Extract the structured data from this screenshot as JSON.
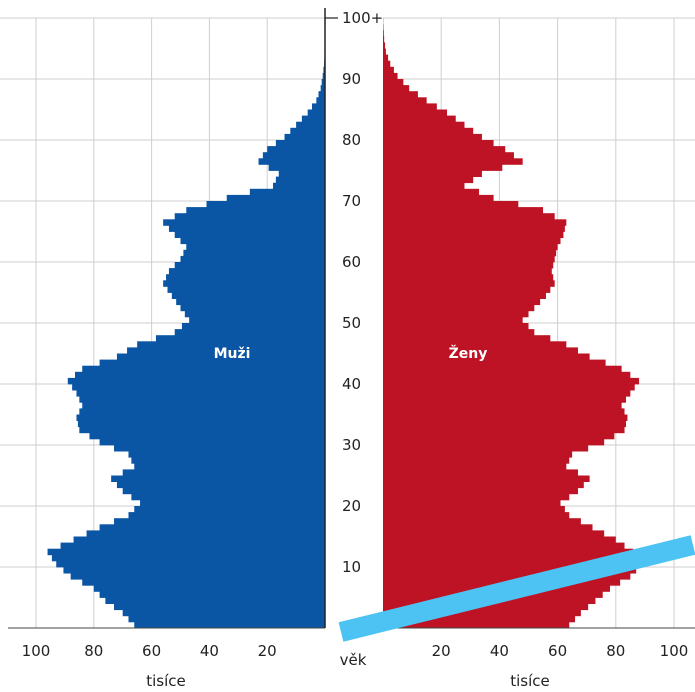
{
  "chart_data": {
    "type": "bar",
    "orientation": "horizontal-pyramid",
    "title": "",
    "grid": true,
    "colors": {
      "male": "#0b56a4",
      "female": "#bd1325",
      "grid": "#cfcfcf",
      "overlay_line": "#4cc3f3"
    },
    "age_axis": {
      "title": "věk",
      "ticks": [
        "10",
        "20",
        "30",
        "40",
        "50",
        "60",
        "70",
        "80",
        "90",
        "100+"
      ]
    },
    "value_axis": {
      "unit": "tisíce",
      "range": [
        0,
        100
      ],
      "ticks": [
        "100",
        "80",
        "60",
        "40",
        "20"
      ],
      "ticks_right": [
        "20",
        "40",
        "60",
        "80",
        "100"
      ]
    },
    "series": [
      {
        "name": "Muži",
        "side": "left",
        "ages": [
          0,
          2,
          4,
          6,
          8,
          10,
          12,
          14,
          16,
          18,
          20,
          22,
          24,
          26,
          28,
          30,
          32,
          34,
          36,
          38,
          40,
          42,
          44,
          46,
          48,
          50,
          52,
          54,
          56,
          58,
          60,
          62,
          64,
          66,
          68,
          70,
          72,
          74,
          76,
          78,
          80,
          82,
          84,
          86,
          88,
          90,
          92,
          94,
          96,
          98,
          100
        ],
        "values": [
          66,
          70,
          76,
          80,
          88,
          93,
          96,
          87,
          78,
          68,
          64,
          70,
          74,
          66,
          68,
          78,
          85,
          86,
          84,
          86,
          89,
          84,
          72,
          65,
          52,
          47,
          50,
          53,
          56,
          54,
          50,
          48,
          52,
          56,
          48,
          34,
          18,
          16,
          23,
          20,
          14,
          10,
          6,
          3,
          1.5,
          0.8,
          0.3,
          0.1,
          0.05,
          0.02,
          0
        ]
      },
      {
        "name": "Ženy",
        "side": "right",
        "ages": [
          0,
          2,
          4,
          6,
          8,
          10,
          12,
          14,
          16,
          18,
          20,
          22,
          24,
          26,
          28,
          30,
          32,
          34,
          36,
          38,
          40,
          42,
          44,
          46,
          48,
          50,
          52,
          54,
          56,
          58,
          60,
          62,
          64,
          66,
          68,
          70,
          72,
          74,
          76,
          78,
          80,
          82,
          84,
          86,
          88,
          90,
          92,
          94,
          96,
          98,
          100
        ],
        "values": [
          64,
          68,
          73,
          78,
          85,
          89,
          86,
          80,
          72,
          64,
          61,
          67,
          71,
          63,
          65,
          76,
          83,
          84,
          82,
          85,
          88,
          82,
          71,
          63,
          52,
          48,
          52,
          56,
          59,
          58,
          59,
          60,
          62,
          63,
          55,
          38,
          28,
          34,
          48,
          42,
          34,
          28,
          22,
          15,
          9,
          5,
          2.5,
          1,
          0.4,
          0.15,
          0
        ]
      }
    ]
  }
}
